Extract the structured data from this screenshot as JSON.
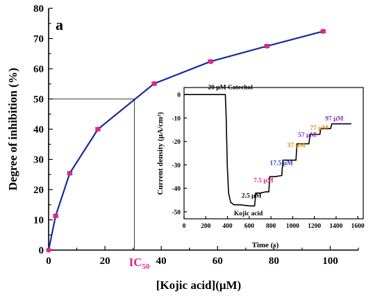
{
  "chart_data": [
    {
      "type": "line",
      "panel_label": "a",
      "xlabel": "[Kojic acid](μM)",
      "ylabel": "Degree of inhibition (%)",
      "xlim": [
        0,
        110
      ],
      "ylim": [
        0,
        80
      ],
      "x_ticks": [
        "0",
        "20",
        "40",
        "60",
        "80",
        "100"
      ],
      "y_ticks": [
        "0",
        "10",
        "20",
        "30",
        "40",
        "50",
        "60",
        "70",
        "80"
      ],
      "x": [
        0,
        2.5,
        7.5,
        17.5,
        37.5,
        57.5,
        77.5,
        97.5
      ],
      "series": [
        {
          "values": [
            0,
            11.3,
            25.4,
            40.0,
            55.1,
            62.4,
            67.5,
            72.4
          ]
        }
      ],
      "ic50_marker": {
        "label": "IC",
        "subscript": "50",
        "x": 30.5,
        "y": 50
      },
      "grid": false,
      "colors": {
        "line": "#1a2a9c",
        "marker": "#e4238c",
        "ic50_text": "#e4238c"
      }
    },
    {
      "type": "line",
      "xlabel": "Time (s)",
      "ylabel": "Current density (μA/cm²)",
      "xlim": [
        0,
        1650
      ],
      "ylim": [
        -53,
        3
      ],
      "x_ticks": [
        "0",
        "200",
        "400",
        "600",
        "800",
        "1000",
        "1200",
        "1400",
        "1600"
      ],
      "y_ticks": [
        "0",
        "-10",
        "-20",
        "-30",
        "-40",
        "-50"
      ],
      "trace": {
        "x": [
          0,
          380,
          388,
          398,
          410,
          430,
          460,
          520,
          600,
          650,
          660,
          700,
          750,
          780,
          790,
          840,
          900,
          910,
          960,
          1030,
          1040,
          1100,
          1150,
          1160,
          1200,
          1250,
          1260,
          1310,
          1350,
          1360,
          1540
        ],
        "y": [
          0,
          0,
          -10,
          -30,
          -42,
          -46,
          -47,
          -47,
          -47.5,
          -47.5,
          -42,
          -42,
          -41.5,
          -41.5,
          -35,
          -35,
          -34.5,
          -28,
          -28,
          -28,
          -21,
          -21,
          -21,
          -17,
          -17,
          -17,
          -14.5,
          -14.5,
          -14.5,
          -12.5,
          -12.5
        ]
      },
      "annotations": [
        {
          "text": "20 μM Catechol",
          "x": 220,
          "y": 2.2,
          "color": "#000000"
        },
        {
          "text": "Kojic acid",
          "x": 460,
          "y": -51.5,
          "color": "#000000"
        },
        {
          "text": "2.5 μM",
          "x": 530,
          "y": -44,
          "color": "#000000"
        },
        {
          "text": "7.5 μM",
          "x": 640,
          "y": -37.5,
          "color": "#e4238c"
        },
        {
          "text": "17.5 μM",
          "x": 790,
          "y": -30,
          "color": "#2b3fbf"
        },
        {
          "text": "37 μM",
          "x": 950,
          "y": -22.5,
          "color": "#e08a00"
        },
        {
          "text": "57 μM",
          "x": 1050,
          "y": -18,
          "color": "#8a2bb5"
        },
        {
          "text": "77 μM",
          "x": 1160,
          "y": -15,
          "color": "#e08a00"
        },
        {
          "text": "97 μM",
          "x": 1300,
          "y": -11,
          "color": "#8a2bb5"
        }
      ],
      "grid": false
    }
  ]
}
